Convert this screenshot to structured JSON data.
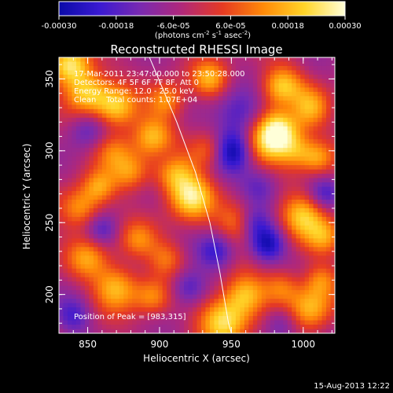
{
  "colorbar": {
    "tick_labels": [
      "-0.00030",
      "-0.00018",
      "-6.0e-05",
      "6.0e-05",
      "0.00018",
      "0.00030"
    ],
    "tick_values": [
      -0.0003,
      -0.00018,
      -6e-05,
      6e-05,
      0.00018,
      0.0003
    ],
    "range": [
      -0.0003,
      0.0003
    ],
    "unit_label": "(photons cm",
    "unit_sup1": "-2",
    "unit_mid": " s",
    "unit_sup2": "-1",
    "unit_end": " asec",
    "unit_sup3": "-2",
    "unit_close": ")",
    "colors": [
      "#0a0aa8",
      "#3a1ad2",
      "#7a2ab0",
      "#b0287a",
      "#e63a22",
      "#ff8a08",
      "#ffd428",
      "#ffffd8"
    ]
  },
  "chart_data": {
    "type": "heatmap",
    "title": "Reconstructed RHESSI Image",
    "xlabel": "Heliocentric X (arcsec)",
    "ylabel": "Heliocentric Y (arcsec)",
    "xlim": [
      830,
      1022
    ],
    "ylim": [
      173,
      365
    ],
    "x_ticks": [
      850,
      900,
      950,
      1000
    ],
    "y_ticks": [
      200,
      250,
      300,
      350
    ],
    "x_tick_labels": [
      "850",
      "900",
      "950",
      "1000"
    ],
    "y_tick_labels": [
      "200",
      "250",
      "300",
      "350"
    ],
    "info_lines": [
      "17-Mar-2011 23:47:00.000 to 23:50:28.000",
      "Detectors: 4F 5F 6F 7F 8F, Att 0",
      "Energy Range: 12.0 - 25.0 keV",
      "Clean    Total counts: 1.07E+04"
    ],
    "peak_label": "Position of Peak = [983,315]",
    "peak": [
      983,
      315
    ],
    "limb_curve": [
      [
        893,
        365
      ],
      [
        912,
        320
      ],
      [
        925,
        285
      ],
      [
        935,
        250
      ],
      [
        942,
        215
      ],
      [
        948,
        180
      ],
      [
        950,
        173
      ]
    ],
    "blobs": [
      {
        "x": 838,
        "y": 360,
        "amp": 1.0,
        "r": 10
      },
      {
        "x": 850,
        "y": 340,
        "amp": 0.9,
        "r": 11
      },
      {
        "x": 870,
        "y": 330,
        "amp": 0.8,
        "r": 10
      },
      {
        "x": 868,
        "y": 300,
        "amp": 0.6,
        "r": 10
      },
      {
        "x": 880,
        "y": 285,
        "amp": 0.55,
        "r": 9
      },
      {
        "x": 895,
        "y": 310,
        "amp": 0.75,
        "r": 10
      },
      {
        "x": 905,
        "y": 335,
        "amp": 0.65,
        "r": 9
      },
      {
        "x": 935,
        "y": 350,
        "amp": 0.7,
        "r": 9
      },
      {
        "x": 922,
        "y": 268,
        "amp": 1.0,
        "r": 11
      },
      {
        "x": 910,
        "y": 285,
        "amp": 0.7,
        "r": 10
      },
      {
        "x": 935,
        "y": 300,
        "amp": 0.6,
        "r": 9
      },
      {
        "x": 955,
        "y": 250,
        "amp": 0.6,
        "r": 10
      },
      {
        "x": 975,
        "y": 305,
        "amp": 0.8,
        "r": 11
      },
      {
        "x": 983,
        "y": 315,
        "amp": 1.0,
        "r": 10
      },
      {
        "x": 985,
        "y": 345,
        "amp": 0.85,
        "r": 10
      },
      {
        "x": 995,
        "y": 300,
        "amp": 0.6,
        "r": 9
      },
      {
        "x": 1005,
        "y": 330,
        "amp": 0.7,
        "r": 10
      },
      {
        "x": 1010,
        "y": 295,
        "amp": 0.55,
        "r": 8
      },
      {
        "x": 1000,
        "y": 255,
        "amp": 0.85,
        "r": 11
      },
      {
        "x": 1015,
        "y": 240,
        "amp": 0.6,
        "r": 9
      },
      {
        "x": 870,
        "y": 205,
        "amp": 0.8,
        "r": 11
      },
      {
        "x": 850,
        "y": 225,
        "amp": 0.6,
        "r": 10
      },
      {
        "x": 845,
        "y": 260,
        "amp": 0.7,
        "r": 10
      },
      {
        "x": 858,
        "y": 275,
        "amp": 0.55,
        "r": 8
      },
      {
        "x": 885,
        "y": 238,
        "amp": 0.5,
        "r": 9
      },
      {
        "x": 905,
        "y": 225,
        "amp": 0.5,
        "r": 9
      },
      {
        "x": 895,
        "y": 198,
        "amp": 0.55,
        "r": 9
      },
      {
        "x": 945,
        "y": 182,
        "amp": 1.0,
        "r": 12
      },
      {
        "x": 960,
        "y": 200,
        "amp": 0.75,
        "r": 10
      },
      {
        "x": 1005,
        "y": 190,
        "amp": 0.8,
        "r": 11
      },
      {
        "x": 985,
        "y": 205,
        "amp": 0.55,
        "r": 9
      },
      {
        "x": 1012,
        "y": 210,
        "amp": 0.5,
        "r": 8
      },
      {
        "x": 850,
        "y": 315,
        "amp": -0.5,
        "r": 10
      },
      {
        "x": 905,
        "y": 295,
        "amp": -0.25,
        "r": 8
      },
      {
        "x": 955,
        "y": 325,
        "amp": -0.55,
        "r": 12
      },
      {
        "x": 950,
        "y": 300,
        "amp": -0.9,
        "r": 10
      },
      {
        "x": 970,
        "y": 275,
        "amp": -0.5,
        "r": 10
      },
      {
        "x": 940,
        "y": 230,
        "amp": -0.6,
        "r": 9
      },
      {
        "x": 975,
        "y": 235,
        "amp": -0.8,
        "r": 9
      },
      {
        "x": 965,
        "y": 250,
        "amp": -0.5,
        "r": 8
      },
      {
        "x": 920,
        "y": 205,
        "amp": -0.55,
        "r": 9
      },
      {
        "x": 985,
        "y": 180,
        "amp": -0.45,
        "r": 9
      },
      {
        "x": 840,
        "y": 185,
        "amp": -0.5,
        "r": 9
      },
      {
        "x": 860,
        "y": 245,
        "amp": -0.45,
        "r": 8
      },
      {
        "x": 1015,
        "y": 270,
        "amp": -0.45,
        "r": 8
      },
      {
        "x": 990,
        "y": 330,
        "amp": -0.2,
        "r": 8
      }
    ]
  },
  "footer": {
    "timestamp": "15-Aug-2013 12:22"
  }
}
